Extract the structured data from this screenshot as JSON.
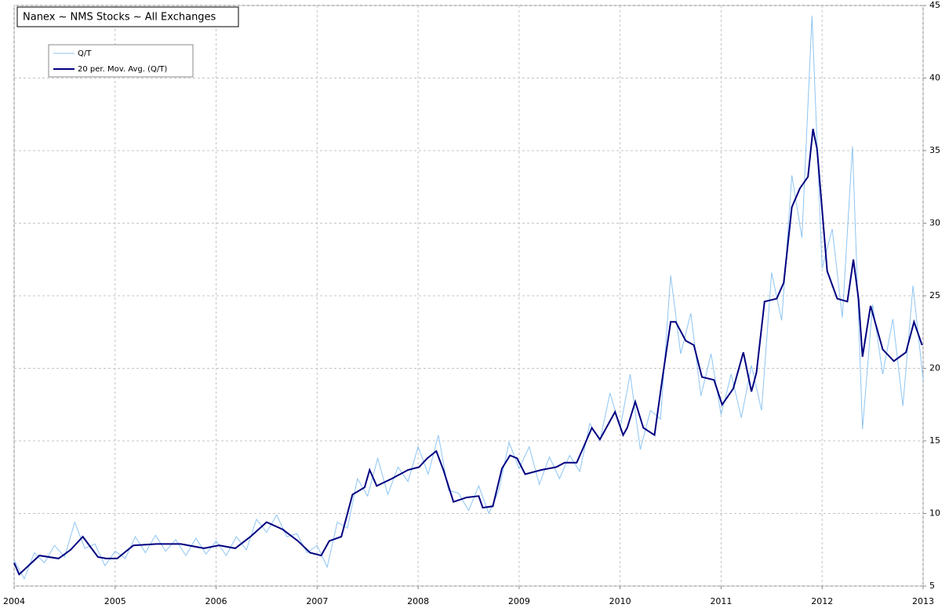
{
  "chart_data": {
    "type": "line",
    "title": "Nanex ~ NMS Stocks ~ All Exchanges",
    "xlim": [
      2004,
      2013
    ],
    "xticks": [
      2004,
      2005,
      2006,
      2007,
      2008,
      2009,
      2010,
      2011,
      2012,
      2013
    ],
    "ylim": [
      5,
      45
    ],
    "yticks": [
      5,
      10,
      15,
      20,
      25,
      30,
      35,
      40,
      45
    ],
    "grid": true,
    "legend": "upper-left",
    "series": [
      {
        "name": "Q/T",
        "color": "#8ec5f2",
        "x": [
          2004.0,
          2004.1,
          2004.2,
          2004.3,
          2004.4,
          2004.5,
          2004.6,
          2004.7,
          2004.8,
          2004.9,
          2005.0,
          2005.1,
          2005.2,
          2005.3,
          2005.4,
          2005.5,
          2005.6,
          2005.7,
          2005.8,
          2005.9,
          2006.0,
          2006.1,
          2006.2,
          2006.3,
          2006.4,
          2006.5,
          2006.6,
          2006.7,
          2006.8,
          2006.9,
          2007.0,
          2007.1,
          2007.2,
          2007.3,
          2007.4,
          2007.5,
          2007.6,
          2007.7,
          2007.8,
          2007.9,
          2008.0,
          2008.1,
          2008.2,
          2008.3,
          2008.4,
          2008.5,
          2008.6,
          2008.7,
          2008.8,
          2008.9,
          2009.0,
          2009.1,
          2009.2,
          2009.3,
          2009.4,
          2009.5,
          2009.6,
          2009.7,
          2009.8,
          2009.9,
          2010.0,
          2010.1,
          2010.2,
          2010.3,
          2010.4,
          2010.5,
          2010.6,
          2010.7,
          2010.8,
          2010.9,
          2011.0,
          2011.1,
          2011.2,
          2011.3,
          2011.4,
          2011.5,
          2011.6,
          2011.7,
          2011.8,
          2011.9,
          2012.0,
          2012.1,
          2012.2,
          2012.3,
          2012.4,
          2012.5,
          2012.6,
          2012.7,
          2012.8,
          2012.9,
          2013.0
        ],
        "values": [
          6.8,
          5.5,
          7.3,
          6.6,
          7.8,
          7.0,
          9.4,
          7.6,
          7.9,
          6.4,
          7.4,
          6.9,
          8.4,
          7.3,
          8.5,
          7.4,
          8.2,
          7.1,
          8.3,
          7.2,
          8.1,
          7.1,
          8.4,
          7.5,
          9.6,
          8.7,
          9.9,
          8.4,
          8.6,
          7.3,
          7.8,
          6.3,
          9.4,
          9.0,
          12.4,
          11.2,
          13.8,
          11.3,
          13.2,
          12.2,
          14.6,
          12.7,
          15.4,
          11.6,
          11.4,
          10.2,
          11.9,
          10.0,
          11.6,
          14.9,
          13.1,
          14.6,
          12.0,
          13.9,
          12.4,
          14.0,
          12.9,
          16.2,
          15.0,
          18.3,
          15.9,
          19.6,
          14.4,
          17.1,
          16.5,
          26.4,
          21.0,
          23.8,
          18.1,
          21.0,
          16.8,
          19.6,
          16.6,
          20.2,
          17.1,
          26.6,
          23.3,
          33.3,
          29.0,
          44.3,
          26.9,
          29.6,
          23.5,
          35.3,
          15.8,
          24.4,
          19.6,
          23.4,
          17.4,
          25.7,
          19.2
        ]
      },
      {
        "name": "20 per. Mov. Avg. (Q/T)",
        "color": "#000080",
        "x": [
          2004.0,
          2004.05,
          2004.25,
          2004.44,
          2004.56,
          2004.68,
          2004.83,
          2004.91,
          2005.02,
          2005.18,
          2005.41,
          2005.65,
          2005.88,
          2006.03,
          2006.19,
          2006.34,
          2006.5,
          2006.66,
          2006.81,
          2006.93,
          2007.04,
          2007.12,
          2007.24,
          2007.35,
          2007.47,
          2007.52,
          2007.59,
          2007.74,
          2007.9,
          2008.01,
          2008.09,
          2008.18,
          2008.25,
          2008.35,
          2008.48,
          2008.6,
          2008.64,
          2008.74,
          2008.83,
          2008.91,
          2008.98,
          2009.06,
          2009.22,
          2009.37,
          2009.45,
          2009.57,
          2009.64,
          2009.72,
          2009.8,
          2009.95,
          2010.03,
          2010.07,
          2010.15,
          2010.23,
          2010.34,
          2010.42,
          2010.5,
          2010.55,
          2010.65,
          2010.73,
          2010.81,
          2010.93,
          2011.01,
          2011.12,
          2011.22,
          2011.3,
          2011.35,
          2011.43,
          2011.55,
          2011.62,
          2011.7,
          2011.78,
          2011.86,
          2011.91,
          2011.95,
          2012.05,
          2012.15,
          2012.25,
          2012.31,
          2012.36,
          2012.4,
          2012.48,
          2012.6,
          2012.71,
          2012.83,
          2012.91,
          2012.99
        ],
        "values": [
          6.6,
          5.8,
          7.1,
          6.9,
          7.5,
          8.4,
          7.0,
          6.9,
          6.9,
          7.8,
          7.9,
          7.9,
          7.6,
          7.8,
          7.6,
          8.4,
          9.4,
          8.9,
          8.1,
          7.3,
          7.1,
          8.1,
          8.4,
          11.3,
          11.8,
          13.0,
          11.9,
          12.4,
          13.0,
          13.2,
          13.8,
          14.3,
          13.0,
          10.8,
          11.1,
          11.2,
          10.4,
          10.5,
          13.1,
          14.0,
          13.8,
          12.7,
          13.0,
          13.2,
          13.5,
          13.5,
          14.6,
          15.9,
          15.1,
          17.0,
          15.4,
          15.9,
          17.7,
          15.9,
          15.4,
          19.4,
          23.2,
          23.2,
          21.9,
          21.6,
          19.4,
          19.2,
          17.5,
          18.6,
          21.1,
          18.4,
          19.7,
          24.6,
          24.8,
          25.9,
          31.1,
          32.4,
          33.2,
          36.5,
          35.1,
          26.7,
          24.8,
          24.6,
          27.5,
          24.8,
          20.8,
          24.3,
          21.3,
          20.5,
          21.1,
          23.2,
          21.6
        ]
      }
    ]
  }
}
